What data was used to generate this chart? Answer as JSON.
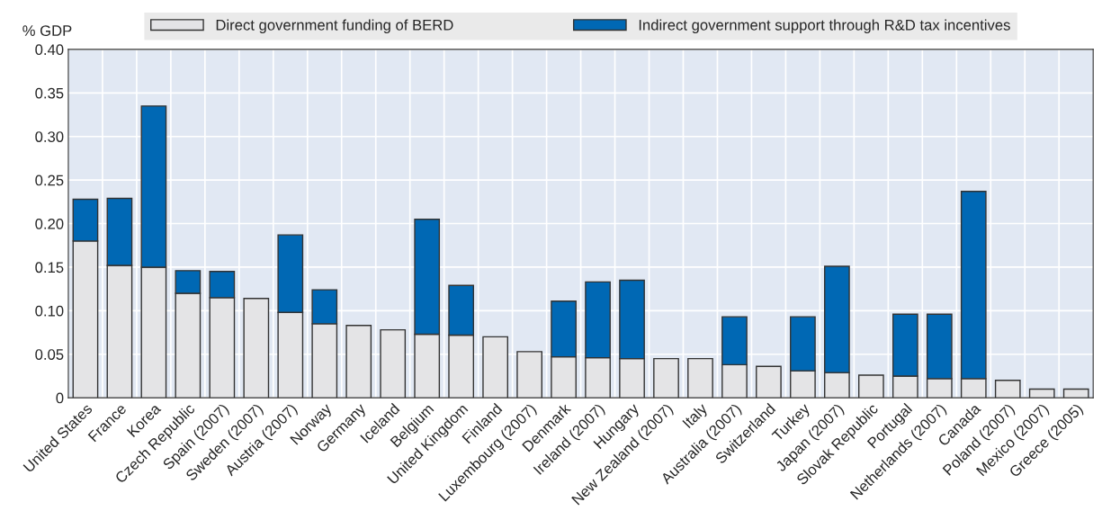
{
  "chart_data": {
    "type": "bar",
    "stacked": true,
    "ylabel": "% GDP",
    "categories": [
      "United States",
      "France",
      "Korea",
      "Czech Republic",
      "Spain (2007)",
      "Sweden (2007)",
      "Austria (2007)",
      "Norway",
      "Germany",
      "Iceland",
      "Belgium",
      "United Kingdom",
      "Finland",
      "Luxembourg (2007)",
      "Denmark",
      "Ireland (2007)",
      "Hungary",
      "New Zealand (2007)",
      "Italy",
      "Australia (2007)",
      "Switzerland",
      "Turkey",
      "Japan (2007)",
      "Slovak Republic",
      "Portugal",
      "Netherlands (2007)",
      "Canada",
      "Poland (2007)",
      "Mexico (2007)",
      "Greece (2005)"
    ],
    "series": [
      {
        "name": "Direct government funding of BERD",
        "color": "#e4e4e6",
        "values": [
          0.18,
          0.152,
          0.15,
          0.12,
          0.115,
          0.114,
          0.098,
          0.085,
          0.083,
          0.078,
          0.073,
          0.072,
          0.07,
          0.053,
          0.047,
          0.046,
          0.045,
          0.045,
          0.045,
          0.038,
          0.036,
          0.031,
          0.029,
          0.026,
          0.025,
          0.022,
          0.022,
          0.02,
          0.01,
          0.01
        ]
      },
      {
        "name": "Indirect government support through R&D tax incentives",
        "color": "#0068b4",
        "values": [
          0.048,
          0.077,
          0.185,
          0.026,
          0.03,
          null,
          0.089,
          0.039,
          null,
          null,
          0.132,
          0.057,
          null,
          null,
          0.064,
          0.087,
          0.09,
          null,
          null,
          0.055,
          null,
          0.062,
          0.122,
          null,
          0.071,
          0.074,
          0.215,
          null,
          null,
          null
        ]
      }
    ],
    "ylim": [
      0,
      0.4
    ],
    "yticks": [
      {
        "value": 0,
        "label": "0"
      },
      {
        "value": 0.05,
        "label": "0.05"
      },
      {
        "value": 0.1,
        "label": "0.10"
      },
      {
        "value": 0.15,
        "label": "0.15"
      },
      {
        "value": 0.2,
        "label": "0.20"
      },
      {
        "value": 0.25,
        "label": "0.25"
      },
      {
        "value": 0.3,
        "label": "0.30"
      },
      {
        "value": 0.35,
        "label": "0.35"
      },
      {
        "value": 0.4,
        "label": "0.40"
      }
    ],
    "grid": true,
    "legend": "top"
  }
}
